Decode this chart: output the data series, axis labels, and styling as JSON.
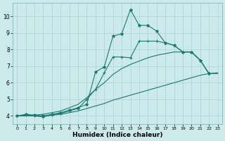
{
  "xlabel": "Humidex (Indice chaleur)",
  "bg_color": "#cce9ec",
  "grid_color": "#aad4d8",
  "line_color": "#1a7a6e",
  "xlim": [
    -0.5,
    23.5
  ],
  "ylim": [
    3.5,
    10.8
  ],
  "xticks": [
    0,
    1,
    2,
    3,
    4,
    5,
    6,
    7,
    8,
    9,
    10,
    11,
    12,
    13,
    14,
    15,
    16,
    17,
    18,
    19,
    20,
    21,
    22,
    23
  ],
  "yticks": [
    4,
    5,
    6,
    7,
    8,
    9,
    10
  ],
  "series": [
    {
      "x": [
        0,
        1,
        2,
        3,
        4,
        5,
        6,
        7,
        8,
        9,
        10,
        11,
        12,
        13,
        14,
        15,
        16,
        17,
        18,
        19,
        20,
        21,
        22
      ],
      "y": [
        4.0,
        4.1,
        4.05,
        4.0,
        4.1,
        4.2,
        4.35,
        4.5,
        4.7,
        6.65,
        6.95,
        8.8,
        8.95,
        10.4,
        9.45,
        9.45,
        9.1,
        8.4,
        8.25,
        7.85,
        7.85,
        7.35,
        6.55
      ],
      "marker": "*",
      "markersize": 3,
      "linewidth": 0.8
    },
    {
      "x": [
        0,
        1,
        2,
        3,
        4,
        5,
        6,
        7,
        8,
        9,
        10,
        11,
        12,
        13,
        14,
        15,
        16,
        17,
        18,
        19,
        20,
        21,
        22
      ],
      "y": [
        4.0,
        4.05,
        4.0,
        3.95,
        4.05,
        4.15,
        4.3,
        4.45,
        5.0,
        5.6,
        6.6,
        7.55,
        7.55,
        7.5,
        8.5,
        8.5,
        8.5,
        8.4,
        8.25,
        7.85,
        7.85,
        7.35,
        6.55
      ],
      "marker": "+",
      "markersize": 3,
      "linewidth": 0.8
    },
    {
      "x": [
        0,
        1,
        2,
        3,
        4,
        5,
        6,
        7,
        8,
        9,
        10,
        11,
        12,
        13,
        14,
        15,
        16,
        17,
        18,
        19,
        20,
        21,
        22,
        23
      ],
      "y": [
        4.0,
        4.0,
        4.05,
        4.1,
        4.2,
        4.3,
        4.5,
        4.7,
        5.1,
        5.6,
        6.0,
        6.5,
        6.85,
        7.1,
        7.3,
        7.5,
        7.65,
        7.75,
        7.85,
        7.85,
        7.85,
        7.35,
        6.55,
        6.55
      ],
      "marker": null,
      "markersize": 0,
      "linewidth": 0.8
    },
    {
      "x": [
        0,
        1,
        2,
        3,
        4,
        5,
        6,
        7,
        8,
        9,
        10,
        11,
        12,
        13,
        14,
        15,
        16,
        17,
        18,
        19,
        20,
        21,
        22,
        23
      ],
      "y": [
        4.0,
        4.0,
        4.0,
        4.0,
        4.05,
        4.1,
        4.2,
        4.3,
        4.45,
        4.6,
        4.75,
        4.95,
        5.1,
        5.25,
        5.4,
        5.55,
        5.7,
        5.85,
        6.0,
        6.15,
        6.3,
        6.45,
        6.55,
        6.6
      ],
      "marker": null,
      "markersize": 0,
      "linewidth": 0.8
    }
  ]
}
